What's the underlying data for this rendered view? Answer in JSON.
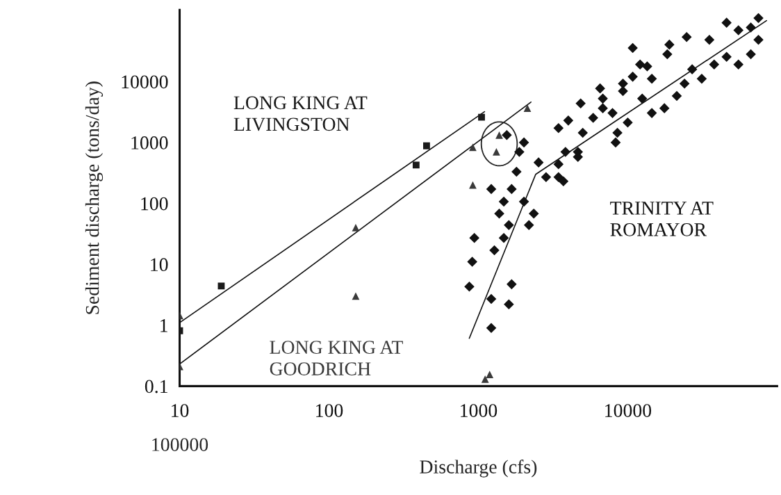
{
  "chart_data": {
    "type": "scatter",
    "xlabel": "Discharge (cfs)",
    "ylabel": "Sediment discharge (tons/day)",
    "log": "xy",
    "grid": false,
    "legend": false,
    "xlim": [
      10,
      100000
    ],
    "xticks": [
      10,
      100,
      1000,
      10000
    ],
    "ylim": [
      0.1,
      150000
    ],
    "yticks": [
      0.1,
      1,
      10,
      100,
      1000,
      10000
    ],
    "annotations": [
      "100000"
    ],
    "series": [
      {
        "name": "LONG KING AT LIVINGSTON",
        "marker": "square",
        "color": "#1a1a1a",
        "x": [
          10,
          19,
          383,
          450,
          1050
        ],
        "values": [
          0.81,
          4.4,
          425,
          880,
          2600
        ]
      },
      {
        "name": "LONG KING AT GOODRICH",
        "marker": "triangle",
        "color": "#3a3a3a",
        "x": [
          10,
          10,
          151,
          151,
          918,
          918,
          1380,
          1320,
          2130,
          1190,
          1110
        ],
        "values": [
          1.44,
          0.21,
          40,
          3.0,
          830,
          200,
          1320,
          700,
          3650,
          0.155,
          0.13
        ]
      },
      {
        "name": "TRINITY AT ROMAYOR",
        "marker": "diamond",
        "color": "#111111",
        "x": [
          870,
          910,
          940,
          1220,
          1220,
          1600,
          1670,
          1280,
          1480,
          1600,
          1380,
          1480,
          1220,
          1670,
          2180,
          2350,
          2020,
          1800,
          1880,
          2020,
          2530,
          2840,
          3440,
          3830,
          3710,
          4640,
          5000,
          5870,
          6810,
          7910,
          4000,
          3440,
          4840,
          6530,
          9290,
          10800,
          12100,
          14500,
          12500,
          10000,
          8530,
          14500,
          17600,
          21300,
          24000,
          27000,
          31300,
          37900,
          45900,
          55100,
          66700,
          75000,
          66700,
          55100,
          45900,
          75000,
          24800,
          35200,
          19000,
          18400,
          10800,
          13500,
          9290,
          6810,
          1550,
          8300,
          4640,
          3440
        ],
        "values": [
          4.3,
          11,
          27,
          2.7,
          0.9,
          2.2,
          4.7,
          17,
          27,
          44,
          68,
          107,
          172,
          172,
          44,
          68,
          107,
          330,
          700,
          1000,
          470,
          270,
          440,
          700,
          230,
          700,
          1440,
          2540,
          3650,
          3040,
          2290,
          1720,
          4370,
          7720,
          9250,
          12000,
          19100,
          11100,
          5240,
          2120,
          1440,
          3040,
          3650,
          5810,
          9250,
          15900,
          11100,
          19100,
          25400,
          19100,
          28100,
          48400,
          77200,
          69600,
          92500,
          110000,
          53700,
          48400,
          40400,
          28100,
          35500,
          17700,
          6960,
          5240,
          1320,
          1000,
          580,
          270
        ]
      },
      {
        "type": "line",
        "color": "#111111",
        "x": [
          10,
          1100
        ],
        "values": [
          1.1,
          3200
        ]
      },
      {
        "type": "line",
        "color": "#111111",
        "x": [
          10,
          2250
        ],
        "values": [
          0.23,
          4600
        ]
      },
      {
        "type": "line",
        "color": "#111111",
        "x": [
          870,
          2420,
          85000
        ],
        "values": [
          0.61,
          300,
          100000
        ]
      }
    ]
  }
}
